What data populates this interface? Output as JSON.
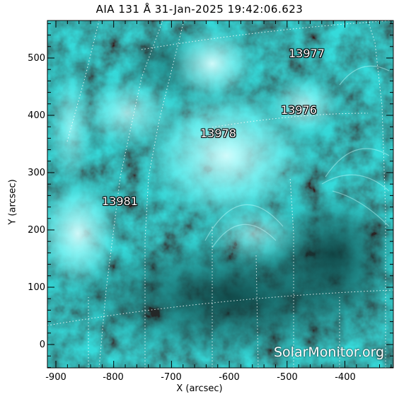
{
  "title": "AIA 131 Å 31-Jan-2025 19:42:06.623",
  "watermark": "SolarMonitor.org",
  "colors": {
    "background": "#ffffff",
    "sun_base": "#1a6e6e",
    "sun_bright": "#8ffcfc",
    "sun_dark": "#0e4a4a"
  },
  "axes": {
    "xlabel": "X (arcsec)",
    "ylabel": "Y (arcsec)",
    "x_ticks": [
      "-900",
      "-800",
      "-700",
      "-600",
      "-500",
      "-400"
    ],
    "y_ticks": [
      "500",
      "400",
      "300",
      "200",
      "100",
      "0"
    ]
  },
  "active_regions": [
    {
      "label": "13977"
    },
    {
      "label": "13976"
    },
    {
      "label": "13978"
    },
    {
      "label": "13981"
    }
  ]
}
